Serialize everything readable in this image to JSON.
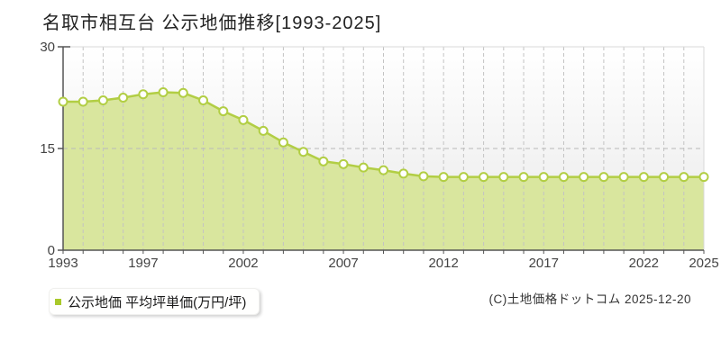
{
  "title": "名取市相互台 公示地価推移[1993-2025]",
  "legend": {
    "marker_color": "#a9c92a",
    "label": "公示地価 平均坪単価(万円/坪)"
  },
  "copyright": "(C)土地価格ドットコム 2025-12-20",
  "chart_data": {
    "type": "area",
    "title": "名取市相互台 公示地価推移[1993-2025]",
    "xlabel": "",
    "ylabel": "万円/坪",
    "ylim": [
      0,
      30
    ],
    "yticks": [
      0,
      15,
      30
    ],
    "xtick_labels": [
      1993,
      1997,
      2002,
      2007,
      2012,
      2017,
      2022,
      2025
    ],
    "grid": "vertical dashed every year; horizontal dashed at 15",
    "legend_position": "bottom-left",
    "x": [
      1993,
      1994,
      1995,
      1996,
      1997,
      1998,
      1999,
      2000,
      2001,
      2002,
      2003,
      2004,
      2005,
      2006,
      2007,
      2008,
      2009,
      2010,
      2011,
      2012,
      2013,
      2014,
      2015,
      2016,
      2017,
      2018,
      2019,
      2020,
      2021,
      2022,
      2023,
      2024,
      2025
    ],
    "series": [
      {
        "name": "公示地価 平均坪単価(万円/坪)",
        "values": [
          21.9,
          21.9,
          22.1,
          22.5,
          23.0,
          23.3,
          23.2,
          22.1,
          20.5,
          19.2,
          17.6,
          15.9,
          14.5,
          13.1,
          12.7,
          12.2,
          11.8,
          11.3,
          10.9,
          10.8,
          10.8,
          10.8,
          10.8,
          10.8,
          10.8,
          10.8,
          10.8,
          10.8,
          10.8,
          10.8,
          10.8,
          10.8,
          10.8
        ]
      }
    ],
    "colors": {
      "line": "#b2ce44",
      "fill": "#d9e69e",
      "marker_fill": "#ffffff",
      "grid": "#c3c3c3",
      "axis": "#555555",
      "frame": "#d8d8d8",
      "plot_bg_top": "#ffffff",
      "plot_bg_bottom": "#e9e9e9"
    }
  }
}
